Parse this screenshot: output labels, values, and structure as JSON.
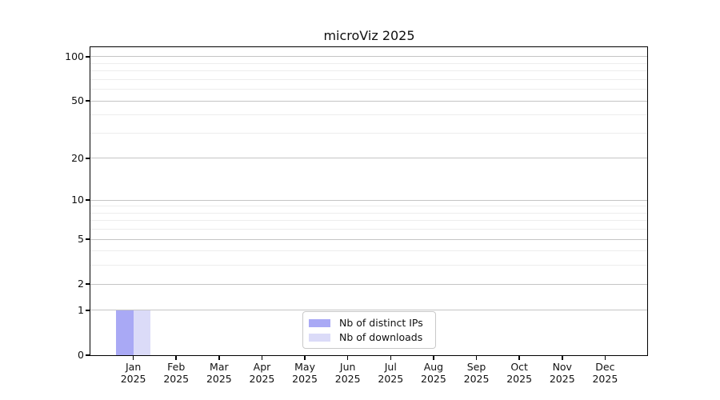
{
  "chart_data": {
    "type": "bar",
    "scale": "log1p",
    "title": "microViz 2025",
    "categories": [
      "Jan",
      "Feb",
      "Mar",
      "Apr",
      "May",
      "Jun",
      "Jul",
      "Aug",
      "Sep",
      "Oct",
      "Nov",
      "Dec"
    ],
    "year_label": "2025",
    "series": [
      {
        "name": "Nb of distinct IPs",
        "color": "#a9a9f5",
        "values": [
          1,
          0,
          0,
          0,
          0,
          0,
          0,
          0,
          0,
          0,
          0,
          0
        ]
      },
      {
        "name": "Nb of downloads",
        "color": "#dbdbf8",
        "values": [
          1,
          0,
          0,
          0,
          0,
          0,
          0,
          0,
          0,
          0,
          0,
          0
        ]
      }
    ],
    "yticks_major": [
      0,
      1,
      2,
      5,
      10,
      20,
      50,
      100
    ],
    "yticks_minor": [
      3,
      4,
      6,
      7,
      8,
      9,
      30,
      40,
      60,
      70,
      80,
      90
    ],
    "ylim": [
      0,
      116
    ],
    "grid": "horizontal-only",
    "legend_position": "bottom-center",
    "colors": {
      "major_grid": "#c4c4c4",
      "minor_grid": "#ededed",
      "spine": "#000000",
      "text": "#111111",
      "background": "#ffffff"
    }
  }
}
